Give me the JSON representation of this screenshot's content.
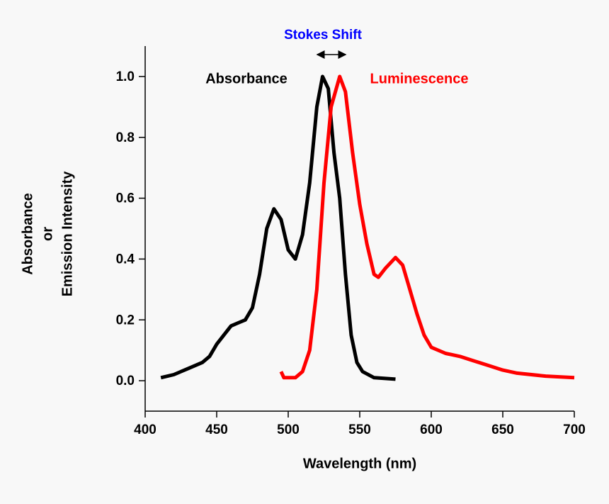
{
  "chart_data": {
    "type": "line",
    "annotation": "Stokes Shift",
    "annotation_color": "#0000ff",
    "x_label": "Wavelength (nm)",
    "y_label": [
      "Absorbance",
      "or",
      "Emission Intensity"
    ],
    "xlim": [
      400,
      700
    ],
    "ylim": [
      -0.1,
      1.1
    ],
    "xticks": [
      400,
      450,
      500,
      550,
      600,
      650,
      700
    ],
    "yticks": [
      {
        "value": 0,
        "label": "0.0"
      },
      {
        "value": 0.2,
        "label": "0.2"
      },
      {
        "value": 0.4,
        "label": "0.4"
      },
      {
        "value": 0.6,
        "label": "0.6"
      },
      {
        "value": 0.8,
        "label": "0.8"
      },
      {
        "value": 1,
        "label": "1.0"
      }
    ],
    "series": [
      {
        "name": "Absorbance",
        "color": "#000000",
        "x": [
          411,
          420,
          430,
          440,
          445,
          450,
          455,
          460,
          465,
          470,
          475,
          480,
          485,
          490,
          495,
          500,
          505,
          510,
          515,
          520,
          524,
          528,
          532,
          536,
          540,
          544,
          548,
          552,
          560,
          575
        ],
        "values": [
          0.01,
          0.02,
          0.04,
          0.06,
          0.08,
          0.12,
          0.15,
          0.18,
          0.19,
          0.2,
          0.24,
          0.35,
          0.5,
          0.565,
          0.53,
          0.43,
          0.4,
          0.48,
          0.65,
          0.9,
          1.0,
          0.96,
          0.75,
          0.6,
          0.35,
          0.15,
          0.06,
          0.03,
          0.01,
          0.005
        ]
      },
      {
        "name": "Luminescence",
        "color": "#ff0000",
        "x": [
          495,
          497,
          505,
          510,
          515,
          520,
          525,
          530,
          536,
          540,
          545,
          550,
          555,
          560,
          563,
          568,
          575,
          580,
          585,
          590,
          595,
          600,
          610,
          620,
          630,
          640,
          650,
          660,
          680,
          700
        ],
        "values": [
          0.03,
          0.01,
          0.01,
          0.03,
          0.1,
          0.3,
          0.65,
          0.9,
          1.0,
          0.95,
          0.75,
          0.58,
          0.45,
          0.35,
          0.34,
          0.37,
          0.405,
          0.38,
          0.3,
          0.22,
          0.15,
          0.11,
          0.09,
          0.08,
          0.065,
          0.05,
          0.035,
          0.025,
          0.015,
          0.01
        ]
      }
    ]
  }
}
